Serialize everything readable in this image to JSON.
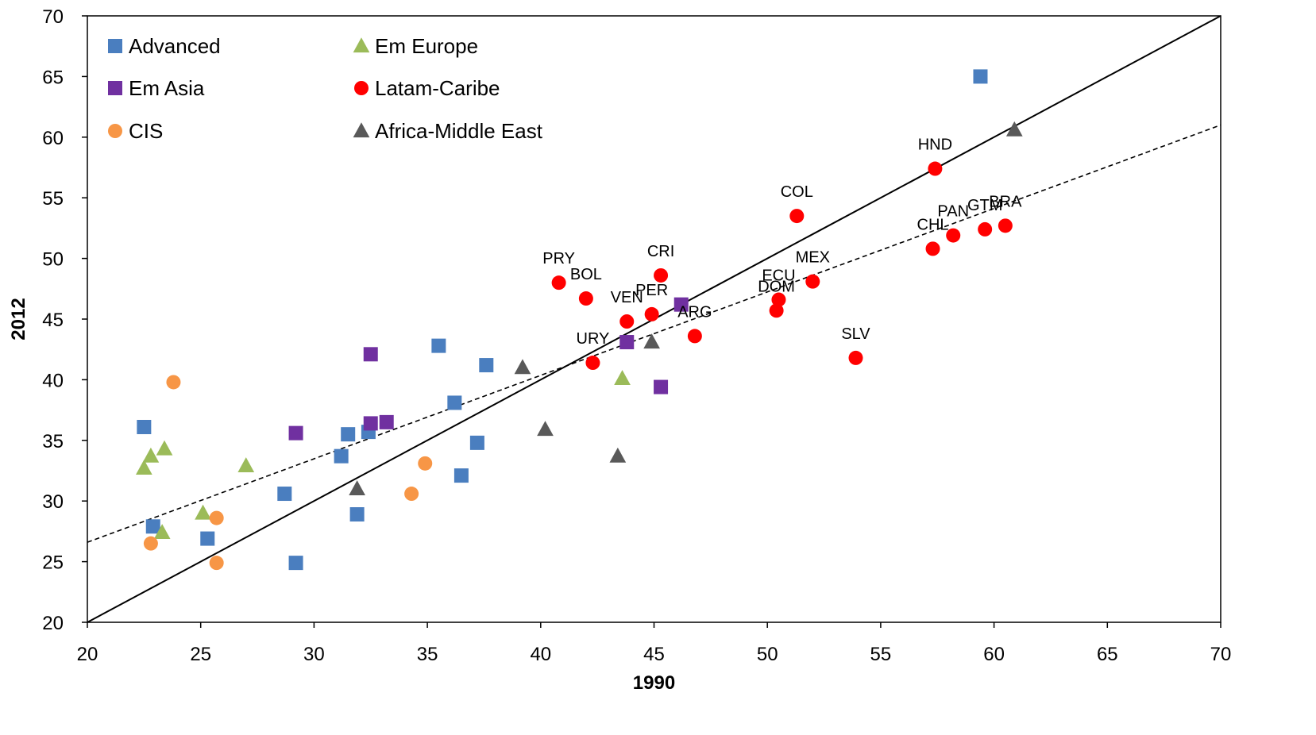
{
  "chart_data": {
    "type": "scatter",
    "xlabel": "1990",
    "ylabel": "2012",
    "xlim": [
      20,
      70
    ],
    "ylim": [
      20,
      70
    ],
    "x_ticks": [
      20,
      25,
      30,
      35,
      40,
      45,
      50,
      55,
      60,
      65,
      70
    ],
    "y_ticks": [
      20,
      25,
      30,
      35,
      40,
      45,
      50,
      55,
      60,
      65,
      70
    ],
    "grid": false,
    "legend": {
      "placement": "top-left",
      "entries": [
        "Advanced",
        "Em Europe",
        "Em Asia",
        "Latam-Caribe",
        "CIS",
        "Africa-Middle East"
      ]
    },
    "lines": [
      {
        "style": "solid",
        "points": [
          [
            20,
            20
          ],
          [
            70,
            70
          ]
        ]
      },
      {
        "style": "dashed",
        "points": [
          [
            20,
            26.6
          ],
          [
            70,
            61.0
          ]
        ]
      }
    ],
    "series": [
      {
        "name": "Advanced",
        "marker": "square",
        "color": "#4a7ebf",
        "points": [
          {
            "x": 22.5,
            "y": 36.1
          },
          {
            "x": 22.9,
            "y": 27.9
          },
          {
            "x": 25.3,
            "y": 26.9
          },
          {
            "x": 28.7,
            "y": 30.6
          },
          {
            "x": 29.2,
            "y": 24.9
          },
          {
            "x": 31.2,
            "y": 33.7
          },
          {
            "x": 31.5,
            "y": 35.5
          },
          {
            "x": 31.9,
            "y": 28.9
          },
          {
            "x": 32.4,
            "y": 35.7
          },
          {
            "x": 35.5,
            "y": 42.8
          },
          {
            "x": 36.2,
            "y": 38.1
          },
          {
            "x": 36.5,
            "y": 32.1
          },
          {
            "x": 37.2,
            "y": 34.8
          },
          {
            "x": 37.6,
            "y": 41.2
          },
          {
            "x": 59.4,
            "y": 65.0
          }
        ]
      },
      {
        "name": "Em Europe",
        "marker": "triangle",
        "color": "#9bbb59",
        "points": [
          {
            "x": 22.5,
            "y": 32.7
          },
          {
            "x": 22.8,
            "y": 33.7
          },
          {
            "x": 23.3,
            "y": 27.4
          },
          {
            "x": 23.4,
            "y": 34.3
          },
          {
            "x": 25.1,
            "y": 29.0
          },
          {
            "x": 27.0,
            "y": 32.9
          },
          {
            "x": 43.6,
            "y": 40.1
          }
        ]
      },
      {
        "name": "Em Asia",
        "marker": "square",
        "color": "#7030a0",
        "points": [
          {
            "x": 29.2,
            "y": 35.6
          },
          {
            "x": 32.5,
            "y": 42.1
          },
          {
            "x": 32.5,
            "y": 36.4
          },
          {
            "x": 33.2,
            "y": 36.5
          },
          {
            "x": 43.8,
            "y": 43.1
          },
          {
            "x": 45.3,
            "y": 39.4
          },
          {
            "x": 46.2,
            "y": 46.2
          }
        ]
      },
      {
        "name": "Latam-Caribe",
        "marker": "circle",
        "color": "#ff0000",
        "points": [
          {
            "x": 40.8,
            "y": 48.0,
            "label": "PRY"
          },
          {
            "x": 42.0,
            "y": 46.7,
            "label": "BOL"
          },
          {
            "x": 42.3,
            "y": 41.4,
            "label": "URY"
          },
          {
            "x": 43.8,
            "y": 44.8,
            "label": "VEN"
          },
          {
            "x": 44.9,
            "y": 45.4,
            "label": "PER"
          },
          {
            "x": 45.3,
            "y": 48.6,
            "label": "CRI"
          },
          {
            "x": 46.8,
            "y": 43.6,
            "label": "ARG"
          },
          {
            "x": 50.5,
            "y": 46.6,
            "label": "ECU"
          },
          {
            "x": 50.4,
            "y": 45.7,
            "label": "DOM"
          },
          {
            "x": 51.3,
            "y": 53.5,
            "label": "COL"
          },
          {
            "x": 52.0,
            "y": 48.1,
            "label": "MEX"
          },
          {
            "x": 53.9,
            "y": 41.8,
            "label": "SLV"
          },
          {
            "x": 57.3,
            "y": 50.8,
            "label": "CHL"
          },
          {
            "x": 57.4,
            "y": 57.4,
            "label": "HND"
          },
          {
            "x": 58.2,
            "y": 51.9,
            "label": "PAN"
          },
          {
            "x": 59.6,
            "y": 52.4,
            "label": "GTM"
          },
          {
            "x": 60.5,
            "y": 52.7,
            "label": "BRA"
          }
        ]
      },
      {
        "name": "CIS",
        "marker": "circle",
        "color": "#f79646",
        "points": [
          {
            "x": 22.8,
            "y": 26.5
          },
          {
            "x": 23.8,
            "y": 39.8
          },
          {
            "x": 25.7,
            "y": 24.9
          },
          {
            "x": 25.7,
            "y": 28.6
          },
          {
            "x": 34.3,
            "y": 30.6
          },
          {
            "x": 34.9,
            "y": 33.1
          }
        ]
      },
      {
        "name": "Africa-Middle East",
        "marker": "triangle",
        "color": "#595959",
        "points": [
          {
            "x": 31.9,
            "y": 31.0
          },
          {
            "x": 39.2,
            "y": 41.0
          },
          {
            "x": 40.2,
            "y": 35.9
          },
          {
            "x": 43.4,
            "y": 33.7
          },
          {
            "x": 44.9,
            "y": 43.1
          },
          {
            "x": 60.9,
            "y": 60.6
          }
        ]
      }
    ]
  }
}
